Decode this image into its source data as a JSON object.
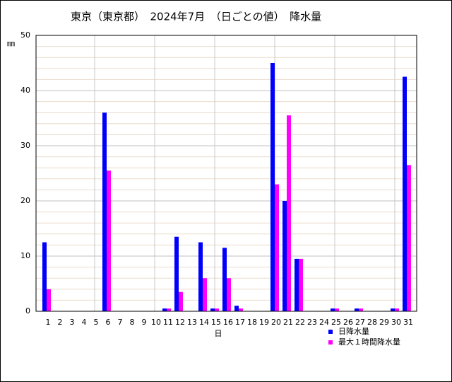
{
  "chart_data": {
    "type": "bar",
    "title": "東京（東京都）　2024年7月　（日ごとの値）　降水量",
    "y_label": "㎜",
    "x_label": "日",
    "categories": [
      "1",
      "2",
      "3",
      "4",
      "5",
      "6",
      "7",
      "8",
      "9",
      "10",
      "11",
      "12",
      "13",
      "14",
      "15",
      "16",
      "17",
      "18",
      "19",
      "20",
      "21",
      "22",
      "23",
      "24",
      "25",
      "26",
      "27",
      "28",
      "29",
      "30",
      "31"
    ],
    "series": [
      {
        "name": "日降水量",
        "color": "#0000ff",
        "values": [
          12.5,
          0,
          0,
          0,
          0,
          36,
          0,
          0,
          0,
          0,
          0.5,
          13.5,
          0,
          12.5,
          0.5,
          11.5,
          1,
          0,
          0,
          45,
          20,
          9.5,
          0,
          0,
          0.5,
          0,
          0.5,
          0,
          0,
          0.5,
          42.5
        ]
      },
      {
        "name": "最大１時間降水量",
        "color": "#ff00ff",
        "values": [
          4,
          0,
          0,
          0,
          0,
          25.5,
          0,
          0,
          0,
          0,
          0.5,
          3.5,
          0,
          6,
          0.5,
          6,
          0.5,
          0,
          0,
          23,
          35.5,
          9.5,
          0,
          0,
          0.5,
          0,
          0.5,
          0,
          0,
          0.5,
          26.5
        ]
      }
    ],
    "ylim": [
      0,
      50
    ],
    "yticks": [
      0,
      10,
      20,
      30,
      40,
      50
    ],
    "grid": true
  }
}
